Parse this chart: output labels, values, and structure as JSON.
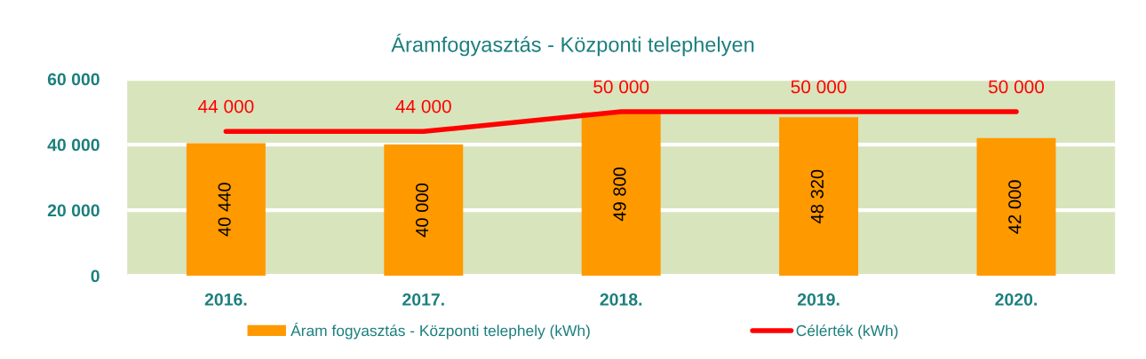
{
  "chart_data": {
    "type": "bar",
    "title": "Áramfogyasztás - Központi telephelyen",
    "categories": [
      "2016.",
      "2017.",
      "2018.",
      "2019.",
      "2020."
    ],
    "series": [
      {
        "name": "Áram fogyasztás - Központi telephely (kWh)",
        "color": "#ff9900",
        "values": [
          40440,
          40000,
          49800,
          48320,
          42000
        ],
        "value_labels": [
          "40 440",
          "40 000",
          "49 800",
          "48 320",
          "42 000"
        ]
      },
      {
        "name": "Célérték (kWh)",
        "type": "line",
        "color": "#ff0000",
        "values": [
          44000,
          44000,
          50000,
          50000,
          50000
        ],
        "value_labels": [
          "44 000",
          "44 000",
          "50 000",
          "50 000",
          "50 000"
        ]
      }
    ],
    "ylim": [
      0,
      60000
    ],
    "yticks": [
      {
        "value": 0,
        "label": "0"
      },
      {
        "value": 20000,
        "label": "20 000"
      },
      {
        "value": 40000,
        "label": "40 000"
      },
      {
        "value": 60000,
        "label": "60 000"
      }
    ],
    "grid": "y",
    "legend": "bottom"
  }
}
